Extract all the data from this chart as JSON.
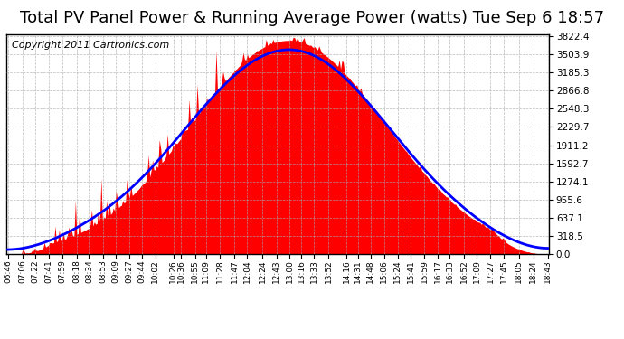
{
  "title": "Total PV Panel Power & Running Average Power (watts) Tue Sep 6 18:57",
  "copyright": "Copyright 2011 Cartronics.com",
  "y_ticks": [
    0.0,
    318.5,
    637.1,
    955.6,
    1274.1,
    1592.7,
    1911.2,
    2229.7,
    2548.3,
    2866.8,
    3185.3,
    3503.9,
    3822.4
  ],
  "x_labels": [
    "06:46",
    "07:06",
    "07:22",
    "07:41",
    "07:59",
    "08:18",
    "08:34",
    "08:53",
    "09:09",
    "09:27",
    "09:44",
    "10:02",
    "10:26",
    "10:36",
    "10:55",
    "11:09",
    "11:28",
    "11:47",
    "12:04",
    "12:24",
    "12:43",
    "13:00",
    "13:16",
    "13:33",
    "13:52",
    "14:16",
    "14:31",
    "14:48",
    "15:06",
    "15:24",
    "15:41",
    "15:59",
    "16:17",
    "16:33",
    "16:52",
    "17:09",
    "17:27",
    "17:45",
    "18:05",
    "18:24",
    "18:43"
  ],
  "bar_color": "#ff0000",
  "line_color": "#0000ff",
  "background_color": "#ffffff",
  "grid_color": "#aaaaaa",
  "title_fontsize": 13,
  "copyright_fontsize": 8,
  "y_max": 3822.4,
  "n_points": 400
}
